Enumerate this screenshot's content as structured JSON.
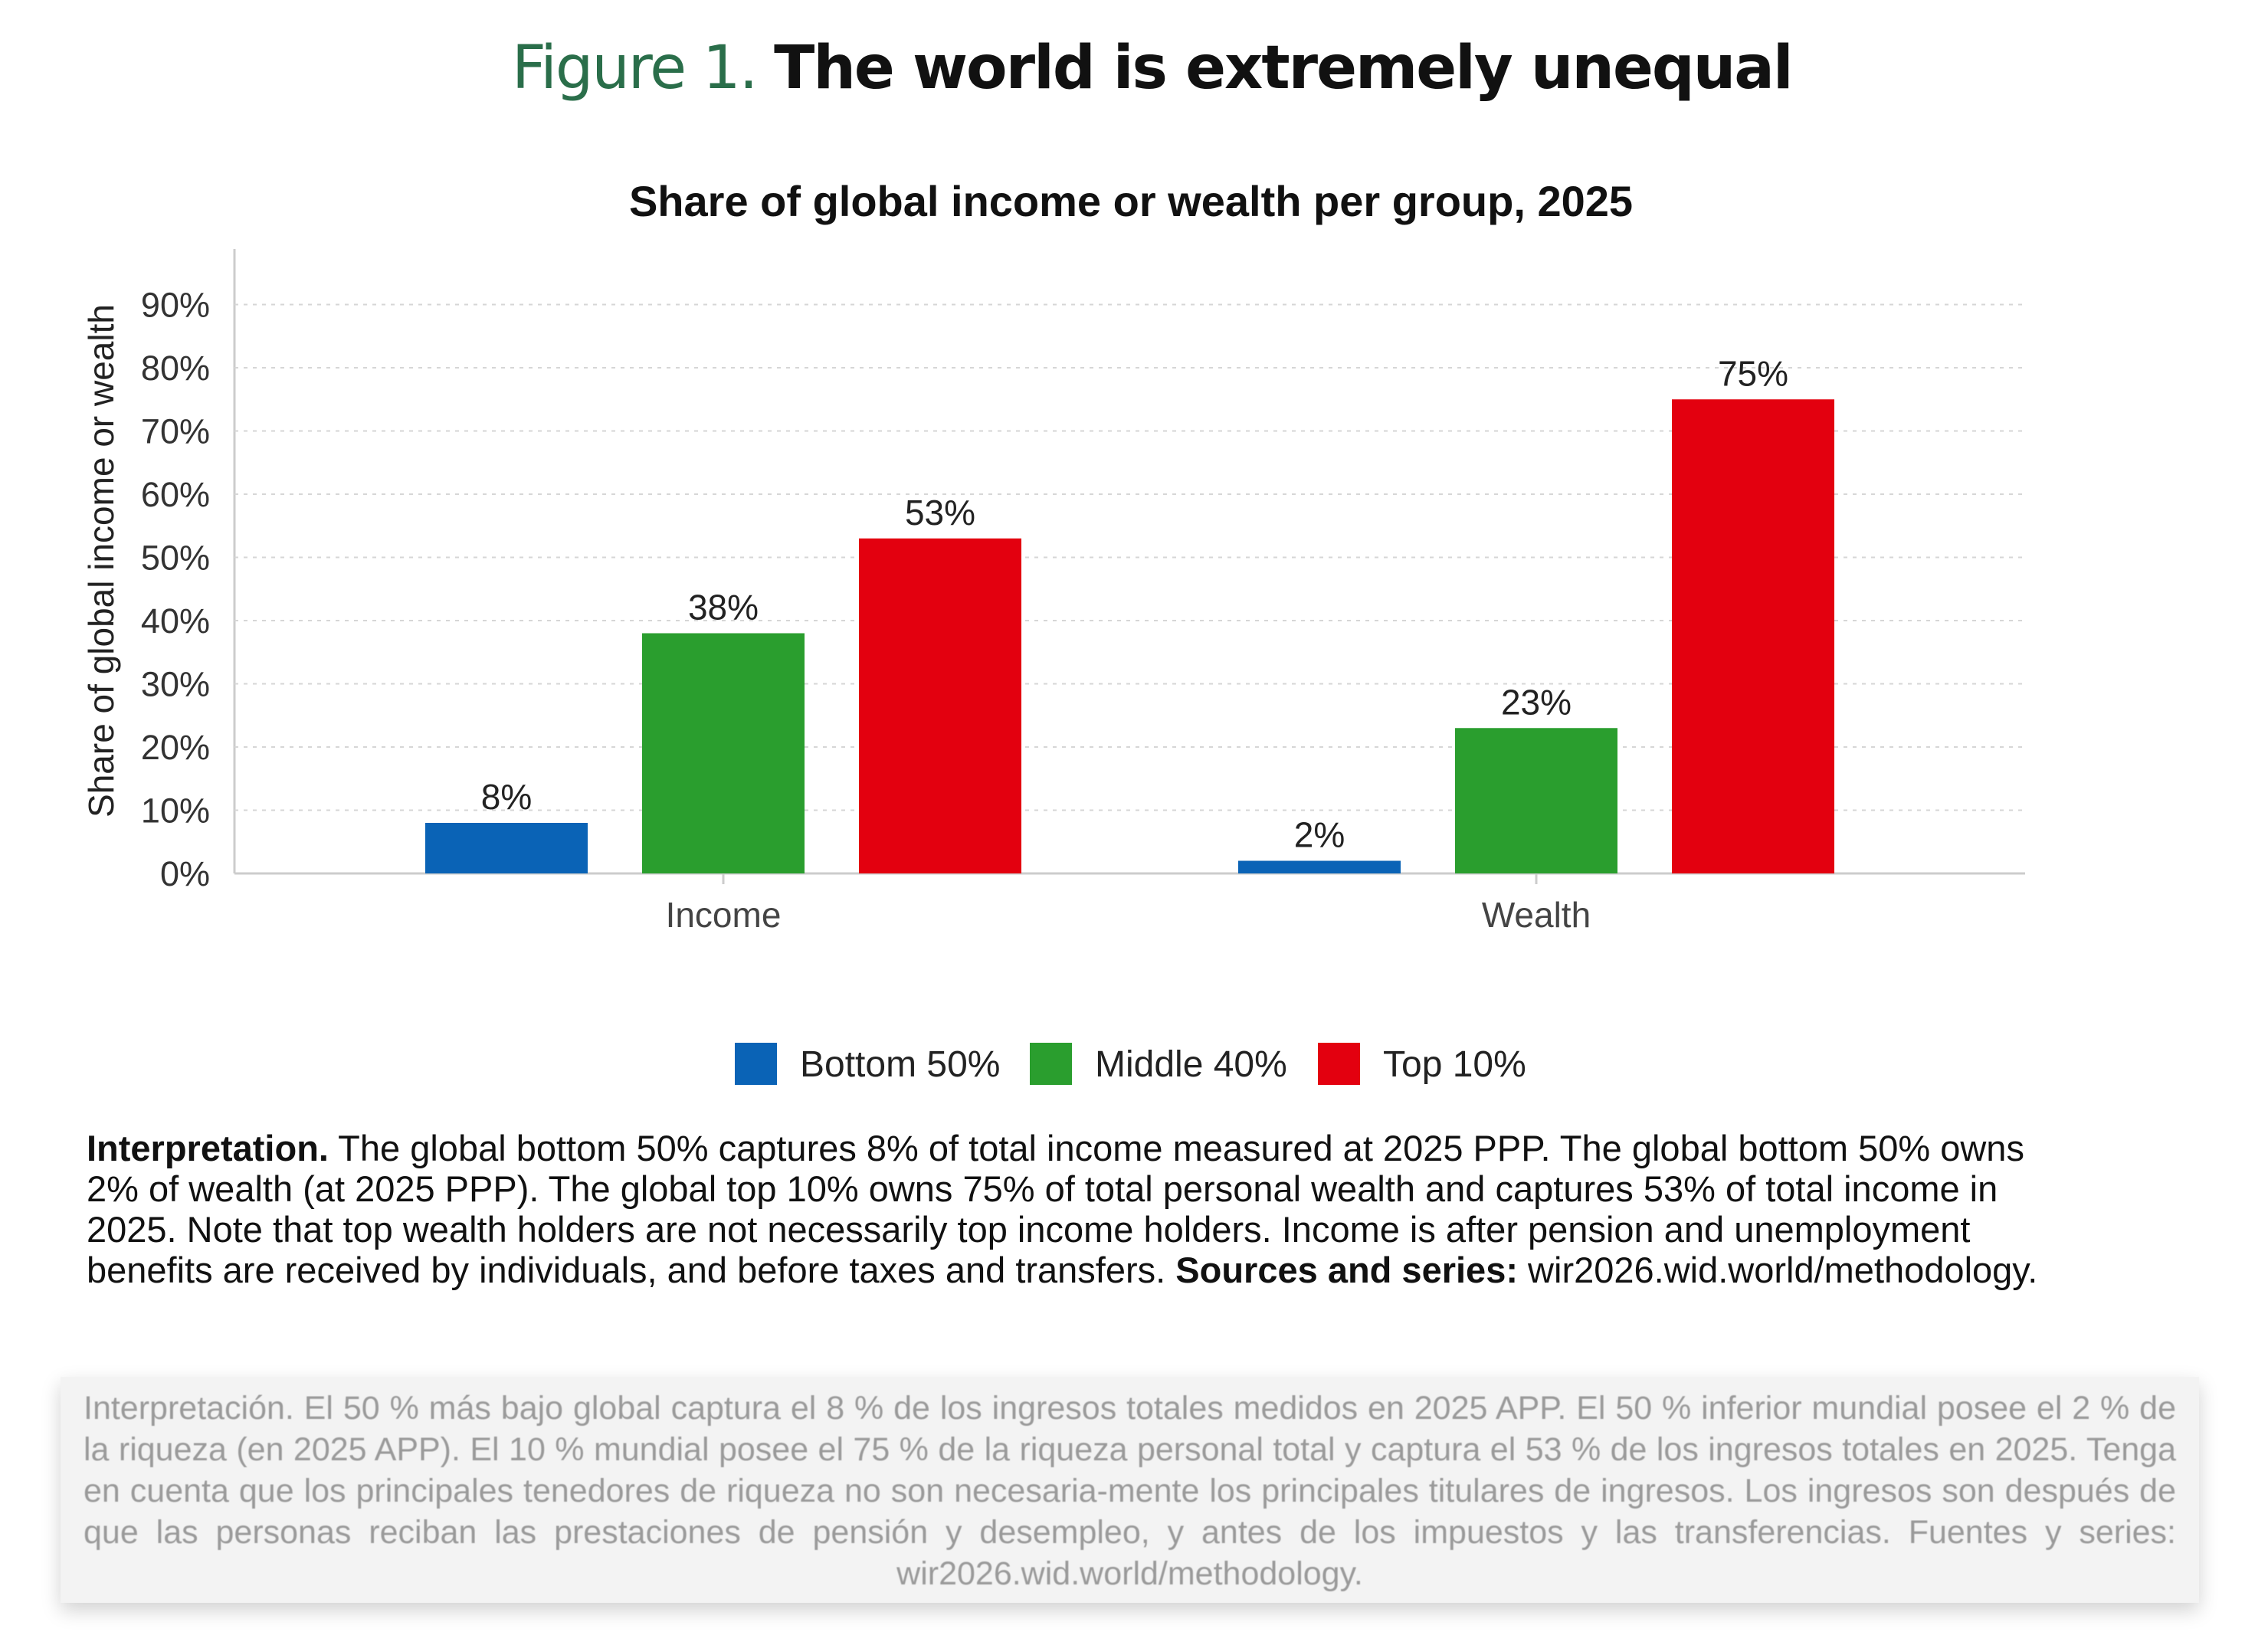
{
  "header": {
    "figure_number": "Figure 1.",
    "figure_title": "The world is extremely unequal"
  },
  "chart_data": {
    "type": "bar",
    "title": "Share of global income or wealth per group, 2025",
    "xlabel": "",
    "ylabel": "Share of global income or wealth",
    "categories": [
      "Income",
      "Wealth"
    ],
    "series": [
      {
        "name": "Bottom 50%",
        "color": "#0a63b6",
        "values": [
          8,
          2
        ]
      },
      {
        "name": "Middle 40%",
        "color": "#2a9e2e",
        "values": [
          38,
          23
        ]
      },
      {
        "name": "Top 10%",
        "color": "#e3000f",
        "values": [
          53,
          75
        ]
      }
    ],
    "data_labels": [
      [
        "8%",
        "2%"
      ],
      [
        "38%",
        "23%"
      ],
      [
        "53%",
        "75%"
      ]
    ],
    "ylim": [
      0,
      100
    ],
    "yticks": [
      0,
      10,
      20,
      30,
      40,
      50,
      60,
      70,
      80,
      90
    ],
    "ytick_labels": [
      "0%",
      "10%",
      "20%",
      "30%",
      "40%",
      "50%",
      "60%",
      "70%",
      "80%",
      "90%"
    ],
    "grid": true,
    "legend_position": "bottom-center"
  },
  "interpretation": {
    "label": "Interpretation.",
    "text": " The global bottom 50% captures 8% of total income measured at 2025 PPP. The global bottom 50% owns 2% of wealth (at 2025 PPP). The global top 10% owns 75% of total personal wealth and captures 53% of total income in 2025. Note that top wealth holders are not necessarily top income holders. Income is after pension and unemployment benefits are received by individuals, and before taxes and transfers. ",
    "sources_label": "Sources and series:",
    "sources_text": " wir2026.wid.world/methodology."
  },
  "translation": {
    "text": "Interpretación. El 50 % más bajo global captura el 8 % de los ingresos totales medidos en 2025 APP. El 50 % inferior mundial posee el 2 % de la riqueza (en 2025 APP). El 10 % mundial posee el 75 % de la riqueza personal total y captura el 53 % de los ingresos totales en 2025. Tenga en cuenta que los principales tenedores de riqueza no son necesaria-mente los principales titulares de ingresos. Los ingresos son después de que las personas reciban las prestaciones de pensión y desempleo, y antes de los impuestos y las transferencias. Fuentes y series: wir2026.wid.world/methodology."
  }
}
